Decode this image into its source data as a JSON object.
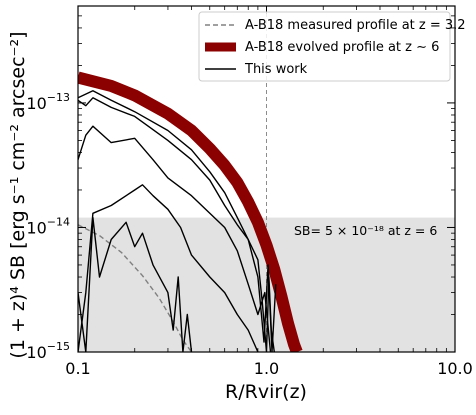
{
  "chart_data": {
    "type": "line",
    "xscale": "log",
    "yscale": "log",
    "xlim": [
      0.1,
      10.0
    ],
    "ylim": [
      1e-15,
      6e-13
    ],
    "xlabel": "R/Rvir(z)",
    "ylabel": "(1 + z)⁴ SB [erg s⁻¹ cm⁻² arcsec⁻²]",
    "x_ticks": [
      {
        "value": 0.1,
        "label": "0.1"
      },
      {
        "value": 1.0,
        "label": "1.0"
      },
      {
        "value": 10.0,
        "label": "10.0"
      }
    ],
    "y_ticks": [
      {
        "value": 1e-15,
        "base": "10",
        "exp": "−15"
      },
      {
        "value": 1e-14,
        "base": "10",
        "exp": "−14"
      },
      {
        "value": 1e-13,
        "base": "10",
        "exp": "−13"
      }
    ],
    "vline_x": 1.0,
    "shaded_region": {
      "ymin": 1e-15,
      "ymax": 1.2e-14,
      "color": "#e2e2e2"
    },
    "annotation": "SB= 5 × 10⁻¹⁸ at z = 6",
    "legend_position": "top-right",
    "legend": [
      {
        "label": "A-B18 measured profile at z = 3.2",
        "style": "dashed",
        "color": "#808080"
      },
      {
        "label": "A-B18 evolved profile at z ∼ 6",
        "style": "thick",
        "color": "#8b0000"
      },
      {
        "label": "This work",
        "style": "solid",
        "color": "#000000"
      }
    ],
    "series": [
      {
        "name": "A-B18 measured profile at z = 3.2",
        "color": "#808080",
        "style": "dashed",
        "x": [
          0.1,
          0.13,
          0.17,
          0.22,
          0.27,
          0.32,
          0.36,
          0.4
        ],
        "y": [
          1.05e-14,
          8.6e-15,
          6.3e-15,
          4.1e-15,
          2.7e-15,
          1.75e-15,
          1.25e-15,
          1e-15
        ]
      },
      {
        "name": "A-B18 evolved profile at z ∼ 6",
        "color": "#8b0000",
        "style": "thick",
        "x": [
          0.1,
          0.15,
          0.2,
          0.3,
          0.4,
          0.5,
          0.6,
          0.7,
          0.8,
          0.9,
          1.0,
          1.1,
          1.2,
          1.3,
          1.4,
          1.45
        ],
        "y": [
          1.6e-13,
          1.37e-13,
          1.15e-13,
          8.2e-14,
          6e-14,
          4.3e-14,
          3.15e-14,
          2.3e-14,
          1.6e-14,
          1.1e-14,
          7.2e-15,
          4.6e-15,
          2.8e-15,
          1.7e-15,
          1.15e-15,
          1e-15
        ]
      },
      {
        "name": "This work",
        "color": "#000000",
        "style": "solid",
        "x": [
          0.1,
          0.12,
          0.15,
          0.2,
          0.3,
          0.4,
          0.5,
          0.6,
          0.7,
          0.8,
          0.9,
          0.95,
          1.0,
          1.03,
          1.06,
          1.1
        ],
        "y": [
          1.1e-13,
          1.25e-13,
          1.05e-13,
          8.5e-14,
          6e-14,
          4.2e-14,
          2.8e-14,
          1.9e-14,
          1.2e-14,
          8e-15,
          5.5e-15,
          2.5e-15,
          1e-15,
          4e-15,
          1.5e-15,
          1e-15
        ]
      },
      {
        "name": "",
        "color": "#000000",
        "style": "solid",
        "x": [
          0.1,
          0.11,
          0.12,
          0.15,
          0.2,
          0.3,
          0.4,
          0.5,
          0.6,
          0.7,
          0.8,
          0.9,
          0.97,
          1.02,
          1.07,
          1.12
        ],
        "y": [
          1.05e-13,
          9.5e-14,
          1.1e-13,
          9.2e-14,
          7.8e-14,
          5e-14,
          3.5e-14,
          2.4e-14,
          1.5e-14,
          1.05e-14,
          8e-15,
          4e-15,
          1.2e-15,
          5e-15,
          1e-15,
          3.5e-15
        ]
      },
      {
        "name": "",
        "color": "#000000",
        "style": "solid",
        "x": [
          0.1,
          0.11,
          0.12,
          0.15,
          0.2,
          0.25,
          0.3,
          0.4,
          0.5,
          0.6,
          0.7,
          0.8,
          0.9,
          0.98,
          1.05
        ],
        "y": [
          3.5e-14,
          5.5e-14,
          6.5e-14,
          4.8e-14,
          5.2e-14,
          3.5e-14,
          2.5e-14,
          1.8e-14,
          1.3e-14,
          1e-14,
          6.5e-15,
          3.5e-15,
          2e-15,
          3e-15,
          1e-15
        ]
      },
      {
        "name": "",
        "color": "#000000",
        "style": "solid",
        "x": [
          0.1,
          0.11,
          0.12,
          0.15,
          0.2,
          0.22,
          0.25,
          0.3,
          0.35,
          0.4,
          0.5,
          0.6,
          0.7,
          0.8,
          0.9
        ],
        "y": [
          1e-15,
          3e-15,
          1.3e-14,
          1.5e-14,
          2e-14,
          2.2e-14,
          1.8e-14,
          1.4e-14,
          1e-14,
          6e-15,
          4e-15,
          3e-15,
          2e-15,
          1.5e-15,
          1e-15
        ]
      },
      {
        "name": "",
        "color": "#000000",
        "style": "solid",
        "x": [
          0.1,
          0.11,
          0.12,
          0.13,
          0.15,
          0.18,
          0.2,
          0.22,
          0.25,
          0.3,
          0.32,
          0.34,
          0.36,
          0.38,
          0.4
        ],
        "y": [
          3e-15,
          1e-15,
          1.2e-14,
          4e-15,
          8e-15,
          1.1e-14,
          7e-15,
          9e-15,
          5e-15,
          3e-15,
          1.5e-15,
          4e-15,
          1e-15,
          2e-15,
          1e-15
        ]
      }
    ]
  }
}
